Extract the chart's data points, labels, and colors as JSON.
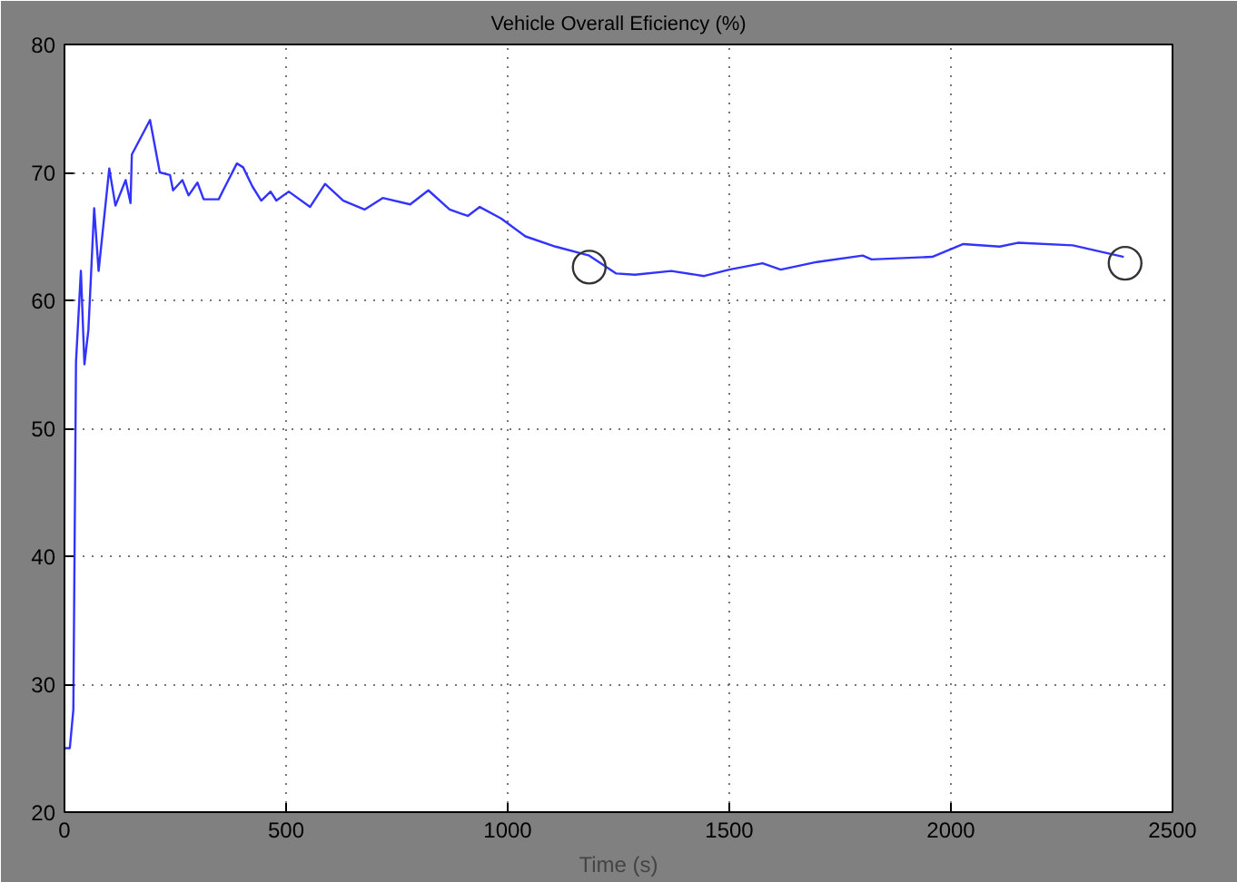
{
  "chart_data": {
    "type": "line",
    "title": "Vehicle Overall Eficiency (%)",
    "xlabel": "Time (s)",
    "xlim": [
      0,
      2500
    ],
    "xticks": [
      0,
      500,
      1000,
      1500,
      2000,
      2500
    ],
    "ylim": [
      20,
      80
    ],
    "yticks": [
      20,
      30,
      40,
      50,
      60,
      70,
      80
    ],
    "grid": true,
    "line_style": "solid",
    "marker": "none",
    "series": [
      {
        "color": "#3333ff",
        "x": [
          0,
          12,
          20,
          26,
          37,
          45,
          54,
          67,
          77,
          101,
          115,
          138,
          149,
          152,
          193,
          215,
          238,
          245,
          266,
          280,
          300,
          314,
          348,
          358,
          389,
          403,
          424,
          444,
          465,
          478,
          506,
          554,
          588,
          629,
          677,
          718,
          780,
          821,
          869,
          910,
          937,
          985,
          1040,
          1108,
          1184,
          1245,
          1287,
          1369,
          1443,
          1500,
          1575,
          1616,
          1698,
          1801,
          1821,
          1958,
          2028,
          2110,
          2151,
          2275,
          2390
        ],
        "values": [
          25,
          25,
          28,
          55.2,
          62.3,
          55,
          57.7,
          67.2,
          62.3,
          70.3,
          67.4,
          69.4,
          67.6,
          71.4,
          74.1,
          70,
          69.8,
          68.6,
          69.4,
          68.2,
          69.2,
          67.9,
          67.9,
          68.6,
          70.7,
          70.4,
          68.9,
          67.8,
          68.5,
          67.8,
          68.5,
          67.3,
          69.1,
          67.8,
          67.1,
          68,
          67.5,
          68.6,
          67.1,
          66.6,
          67.3,
          66.4,
          65,
          64.2,
          63.5,
          62.1,
          62,
          62.3,
          61.9,
          62.4,
          62.9,
          62.4,
          63,
          63.5,
          63.2,
          63.4,
          64.4,
          64.2,
          64.5,
          64.3,
          63.4
        ]
      },
      {
        "type": "scatter",
        "marker": "circle",
        "color": "#333333",
        "x": [
          1184,
          2393
        ],
        "values": [
          62.6,
          62.9
        ]
      }
    ]
  }
}
